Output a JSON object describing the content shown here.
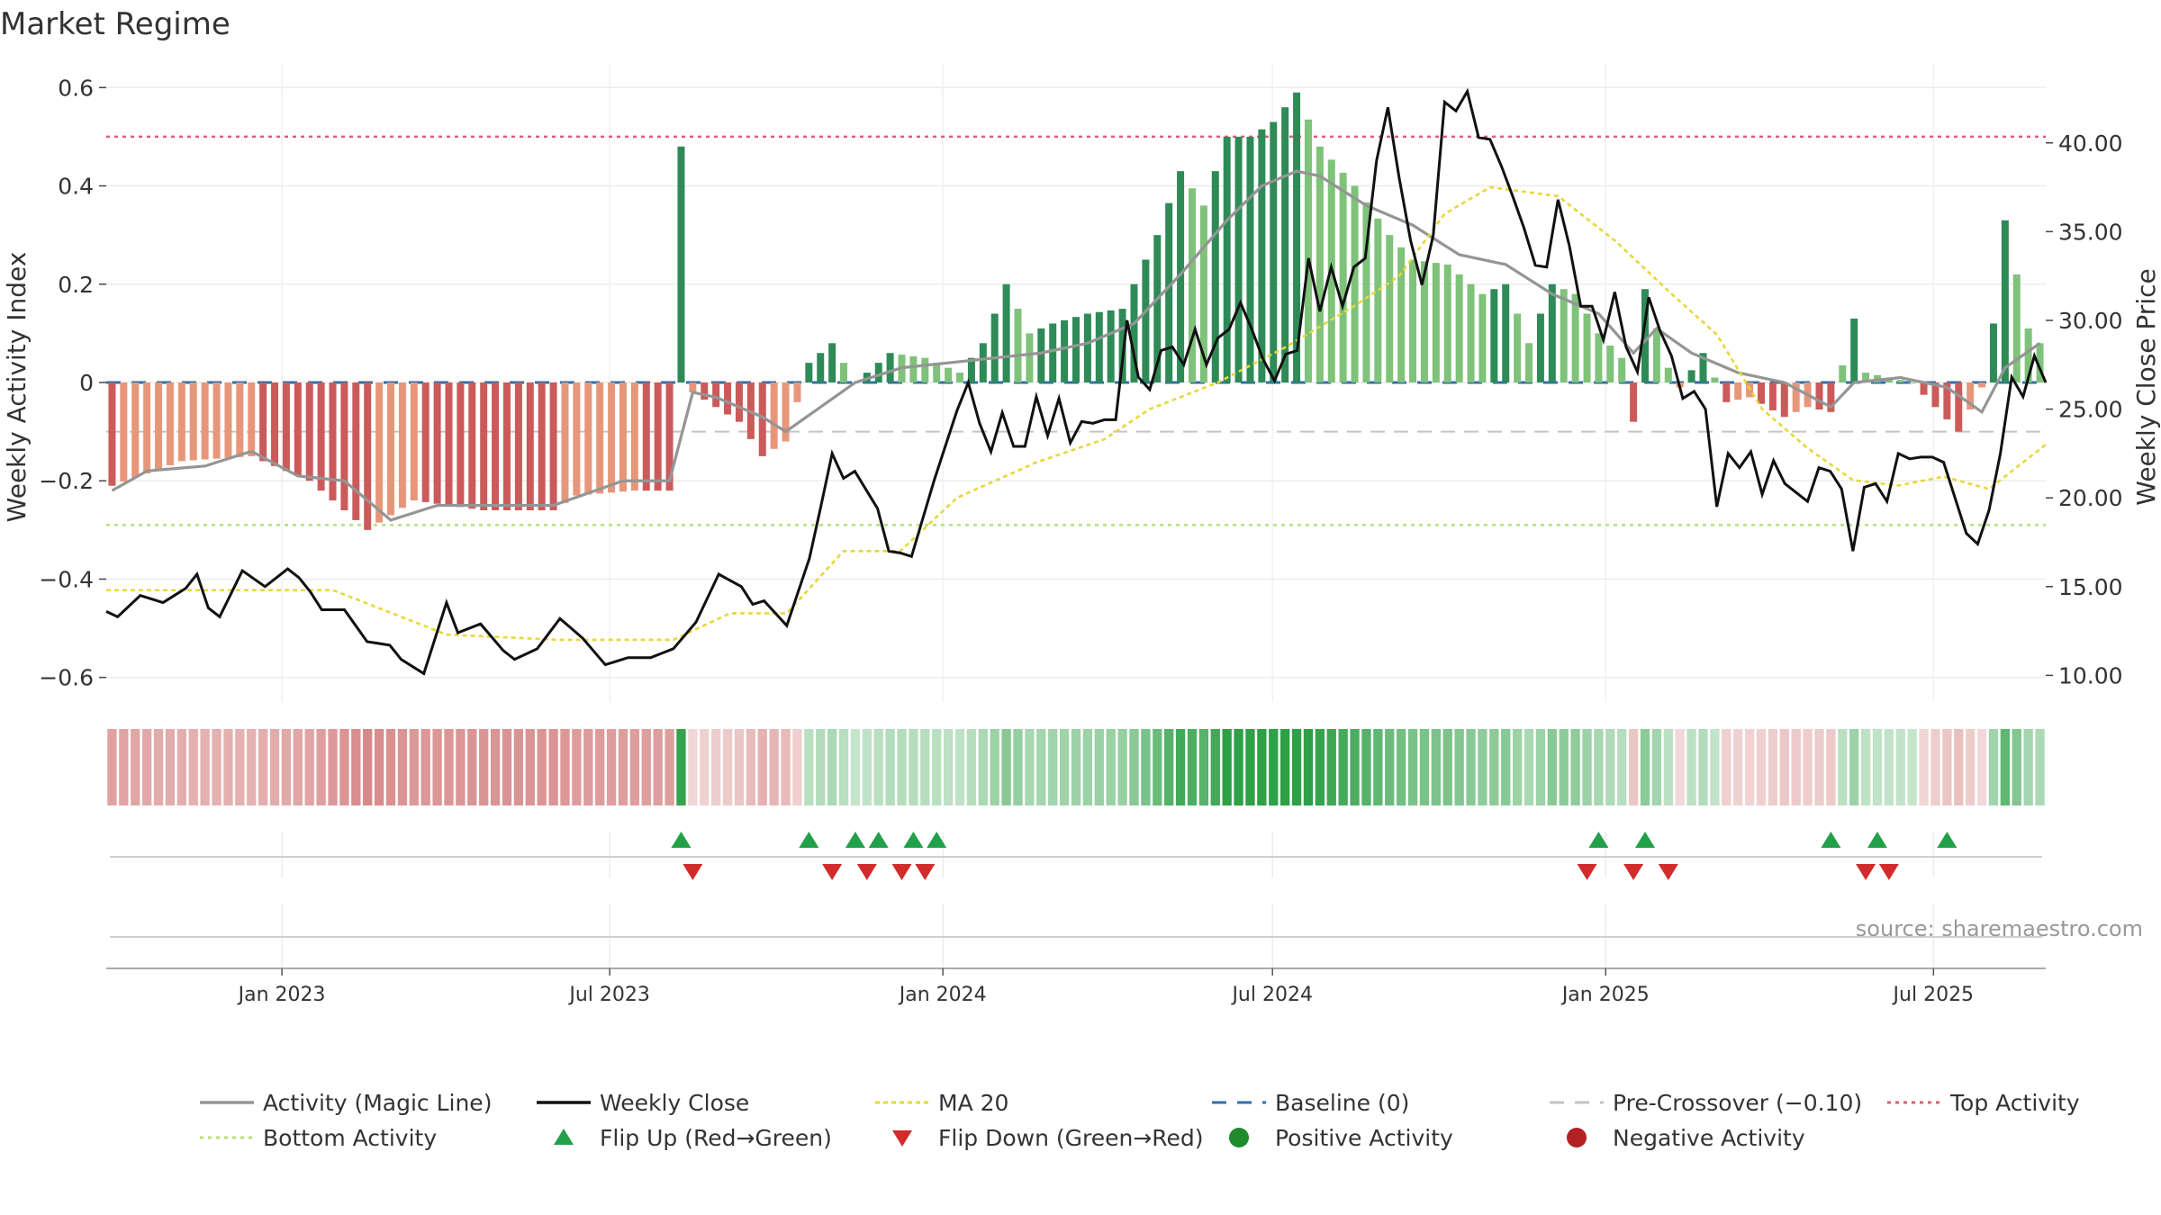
{
  "chart_data": {
    "type": "bar",
    "title": "Market Regime",
    "ylabel_left": "Weekly Activity Index",
    "ylabel_right": "Weekly Close Price",
    "source": "source: sharemaestro.com",
    "left_ylim": [
      -0.65,
      0.65
    ],
    "right_ylim": [
      8.5,
      44.5
    ],
    "left_ticks": [
      "0.6",
      "0.4",
      "0.2",
      "0",
      "−0.2",
      "−0.4",
      "−0.6"
    ],
    "left_tick_values": [
      0.6,
      0.4,
      0.2,
      0,
      -0.2,
      -0.4,
      -0.6
    ],
    "right_ticks": [
      "40.00",
      "35.00",
      "30.00",
      "25.00",
      "20.00",
      "15.00",
      "10.00"
    ],
    "right_tick_values": [
      40,
      35,
      30,
      25,
      20,
      15,
      10
    ],
    "x_start": "2022-09-26",
    "x_end": "2025-09-01",
    "x_ticks": [
      {
        "label": "Jan 2023",
        "date": "2023-01-01"
      },
      {
        "label": "Jul 2023",
        "date": "2023-07-01"
      },
      {
        "label": "Jan 2024",
        "date": "2024-01-01"
      },
      {
        "label": "Jul 2024",
        "date": "2024-07-01"
      },
      {
        "label": "Jan 2025",
        "date": "2025-01-01"
      },
      {
        "label": "Jul 2025",
        "date": "2025-07-01"
      }
    ],
    "reference_lines": {
      "baseline": 0,
      "pre_crossover": -0.1,
      "top_activity": 0.5,
      "bottom_activity": -0.29
    },
    "legend": [
      {
        "label": "Activity (Magic Line)",
        "key": "magic"
      },
      {
        "label": "Weekly Close",
        "key": "close"
      },
      {
        "label": "MA 20",
        "key": "ma"
      },
      {
        "label": "Baseline (0)",
        "key": "baseline"
      },
      {
        "label": "Pre-Crossover (−0.10)",
        "key": "pre"
      },
      {
        "label": "Top Activity",
        "key": "top"
      },
      {
        "label": "Bottom Activity",
        "key": "bottom"
      },
      {
        "label": "Flip Up (Red→Green)",
        "key": "flipup"
      },
      {
        "label": "Flip Down (Green→Red)",
        "key": "flipdown"
      },
      {
        "label": "Positive Activity",
        "key": "pos"
      },
      {
        "label": "Negative Activity",
        "key": "neg"
      }
    ],
    "activity_anchors": [
      [
        0,
        -0.21
      ],
      [
        6,
        -0.16
      ],
      [
        12,
        -0.15
      ],
      [
        17,
        -0.2
      ],
      [
        22,
        -0.3
      ],
      [
        26,
        -0.24
      ],
      [
        32,
        -0.26
      ],
      [
        38,
        -0.26
      ],
      [
        40,
        -0.23
      ],
      [
        45,
        -0.22
      ],
      [
        48,
        -0.22
      ],
      [
        49,
        0.48
      ],
      [
        50,
        -0.02
      ],
      [
        54,
        -0.08
      ],
      [
        56,
        -0.15
      ],
      [
        58,
        -0.12
      ],
      [
        60,
        0.04
      ],
      [
        62,
        0.08
      ],
      [
        64,
        0.0
      ],
      [
        67,
        0.06
      ],
      [
        70,
        0.05
      ],
      [
        73,
        0.02
      ],
      [
        75,
        0.08
      ],
      [
        77,
        0.2
      ],
      [
        79,
        0.1
      ],
      [
        81,
        0.12
      ],
      [
        84,
        0.14
      ],
      [
        87,
        0.15
      ],
      [
        90,
        0.3
      ],
      [
        92,
        0.43
      ],
      [
        94,
        0.36
      ],
      [
        96,
        0.5
      ],
      [
        98,
        0.5
      ],
      [
        100,
        0.53
      ],
      [
        102,
        0.59
      ],
      [
        104,
        0.48
      ],
      [
        107,
        0.4
      ],
      [
        110,
        0.3
      ],
      [
        112,
        0.25
      ],
      [
        115,
        0.24
      ],
      [
        118,
        0.18
      ],
      [
        120,
        0.2
      ],
      [
        122,
        0.08
      ],
      [
        124,
        0.2
      ],
      [
        126,
        0.18
      ],
      [
        128,
        0.1
      ],
      [
        130,
        0.05
      ],
      [
        131,
        -0.08
      ],
      [
        132,
        0.19
      ],
      [
        134,
        0.03
      ],
      [
        135,
        -0.01
      ],
      [
        137,
        0.06
      ],
      [
        139,
        -0.04
      ],
      [
        141,
        -0.03
      ],
      [
        144,
        -0.07
      ],
      [
        146,
        -0.05
      ],
      [
        148,
        -0.06
      ],
      [
        150,
        0.13
      ],
      [
        151,
        0.02
      ],
      [
        153,
        0.01
      ],
      [
        155,
        0.0
      ],
      [
        157,
        -0.05
      ],
      [
        159,
        -0.1
      ],
      [
        161,
        -0.01
      ],
      [
        162,
        0.12
      ],
      [
        163,
        0.33
      ],
      [
        165,
        0.11
      ],
      [
        166,
        0.08
      ]
    ],
    "magic_anchors": [
      [
        0,
        -0.22
      ],
      [
        3,
        -0.18
      ],
      [
        8,
        -0.17
      ],
      [
        12,
        -0.14
      ],
      [
        16,
        -0.19
      ],
      [
        20,
        -0.2
      ],
      [
        24,
        -0.28
      ],
      [
        28,
        -0.25
      ],
      [
        32,
        -0.25
      ],
      [
        38,
        -0.25
      ],
      [
        44,
        -0.2
      ],
      [
        48,
        -0.2
      ],
      [
        50,
        -0.02
      ],
      [
        52,
        -0.03
      ],
      [
        56,
        -0.07
      ],
      [
        58,
        -0.1
      ],
      [
        61,
        -0.05
      ],
      [
        64,
        0.0
      ],
      [
        68,
        0.03
      ],
      [
        72,
        0.04
      ],
      [
        76,
        0.05
      ],
      [
        80,
        0.06
      ],
      [
        84,
        0.08
      ],
      [
        88,
        0.12
      ],
      [
        92,
        0.22
      ],
      [
        96,
        0.33
      ],
      [
        99,
        0.4
      ],
      [
        102,
        0.43
      ],
      [
        104,
        0.42
      ],
      [
        108,
        0.36
      ],
      [
        112,
        0.32
      ],
      [
        116,
        0.26
      ],
      [
        120,
        0.24
      ],
      [
        124,
        0.18
      ],
      [
        128,
        0.14
      ],
      [
        131,
        0.06
      ],
      [
        133,
        0.11
      ],
      [
        136,
        0.06
      ],
      [
        140,
        0.02
      ],
      [
        144,
        0.0
      ],
      [
        148,
        -0.05
      ],
      [
        150,
        0.0
      ],
      [
        154,
        0.01
      ],
      [
        158,
        -0.01
      ],
      [
        161,
        -0.06
      ],
      [
        163,
        0.03
      ],
      [
        166,
        0.08
      ]
    ],
    "close_anchors": [
      [
        0,
        13.6
      ],
      [
        1,
        13.3
      ],
      [
        3,
        14.5
      ],
      [
        5,
        14.1
      ],
      [
        7,
        14.9
      ],
      [
        8,
        15.7
      ],
      [
        9,
        13.8
      ],
      [
        10,
        13.3
      ],
      [
        12,
        15.9
      ],
      [
        14,
        15.0
      ],
      [
        16,
        16.0
      ],
      [
        17,
        15.5
      ],
      [
        18,
        14.7
      ],
      [
        19,
        13.7
      ],
      [
        21,
        13.7
      ],
      [
        23,
        11.9
      ],
      [
        25,
        11.7
      ],
      [
        26,
        10.9
      ],
      [
        28,
        10.1
      ],
      [
        30,
        14.1
      ],
      [
        31,
        12.4
      ],
      [
        33,
        12.9
      ],
      [
        35,
        11.4
      ],
      [
        36,
        10.9
      ],
      [
        38,
        11.5
      ],
      [
        40,
        13.2
      ],
      [
        42,
        12.1
      ],
      [
        44,
        10.6
      ],
      [
        46,
        11.0
      ],
      [
        48,
        11.0
      ],
      [
        50,
        11.5
      ],
      [
        52,
        13.0
      ],
      [
        54,
        15.7
      ],
      [
        56,
        15.0
      ],
      [
        57,
        14.0
      ],
      [
        58,
        14.2
      ],
      [
        60,
        12.8
      ],
      [
        62,
        16.6
      ],
      [
        63,
        19.5
      ],
      [
        64,
        22.5
      ],
      [
        65,
        21.1
      ],
      [
        66,
        21.5
      ],
      [
        68,
        19.4
      ],
      [
        69,
        17.0
      ],
      [
        70,
        16.9
      ],
      [
        71,
        16.7
      ],
      [
        73,
        21.0
      ],
      [
        75,
        24.9
      ],
      [
        76,
        26.5
      ],
      [
        77,
        24.2
      ],
      [
        78,
        22.6
      ],
      [
        79,
        24.8
      ],
      [
        80,
        22.9
      ],
      [
        81,
        22.9
      ],
      [
        82,
        25.7
      ],
      [
        83,
        23.5
      ],
      [
        84,
        25.6
      ],
      [
        85,
        23.1
      ],
      [
        86,
        24.3
      ],
      [
        87,
        24.2
      ],
      [
        88,
        24.4
      ],
      [
        89,
        24.4
      ],
      [
        90,
        30.0
      ],
      [
        91,
        26.8
      ],
      [
        92,
        26.1
      ],
      [
        93,
        28.3
      ],
      [
        94,
        28.5
      ],
      [
        95,
        27.5
      ],
      [
        96,
        29.5
      ],
      [
        97,
        27.5
      ],
      [
        98,
        29.0
      ],
      [
        99,
        29.5
      ],
      [
        100,
        31.0
      ],
      [
        101,
        29.5
      ],
      [
        102,
        27.8
      ],
      [
        103,
        26.6
      ],
      [
        104,
        28.1
      ],
      [
        105,
        28.3
      ],
      [
        106,
        33.5
      ],
      [
        107,
        30.5
      ],
      [
        108,
        33.0
      ],
      [
        109,
        30.8
      ],
      [
        110,
        33.0
      ],
      [
        111,
        33.5
      ],
      [
        112,
        39.0
      ],
      [
        113,
        42.0
      ],
      [
        114,
        38.0
      ],
      [
        115,
        34.5
      ],
      [
        116,
        32.0
      ],
      [
        117,
        34.8
      ],
      [
        118,
        42.3
      ],
      [
        119,
        41.8
      ],
      [
        120,
        42.9
      ],
      [
        121,
        40.3
      ],
      [
        122,
        40.2
      ],
      [
        123,
        38.7
      ],
      [
        124,
        37.0
      ],
      [
        125,
        35.2
      ],
      [
        126,
        33.1
      ],
      [
        127,
        33.0
      ],
      [
        128,
        36.8
      ],
      [
        129,
        34.2
      ],
      [
        130,
        30.8
      ],
      [
        131,
        30.8
      ],
      [
        132,
        28.9
      ],
      [
        133,
        31.6
      ],
      [
        134,
        28.5
      ],
      [
        135,
        27.1
      ],
      [
        136,
        31.3
      ],
      [
        137,
        29.4
      ],
      [
        138,
        28.0
      ],
      [
        139,
        25.6
      ],
      [
        140,
        26.0
      ],
      [
        141,
        25.0
      ],
      [
        142,
        19.5
      ],
      [
        143,
        22.5
      ],
      [
        144,
        21.7
      ],
      [
        145,
        22.6
      ],
      [
        146,
        20.2
      ],
      [
        147,
        22.1
      ],
      [
        148,
        20.8
      ],
      [
        149,
        20.3
      ],
      [
        150,
        19.8
      ],
      [
        151,
        21.7
      ],
      [
        152,
        21.5
      ],
      [
        153,
        20.5
      ],
      [
        154,
        17.0
      ],
      [
        155,
        20.6
      ],
      [
        156,
        20.8
      ],
      [
        157,
        19.8
      ],
      [
        158,
        22.5
      ],
      [
        159,
        22.2
      ],
      [
        160,
        22.3
      ],
      [
        161,
        22.3
      ],
      [
        162,
        22.0
      ],
      [
        163,
        20.0
      ],
      [
        164,
        18.0
      ],
      [
        165,
        17.4
      ],
      [
        166,
        19.3
      ],
      [
        167,
        22.5
      ],
      [
        168,
        26.8
      ],
      [
        169,
        25.7
      ],
      [
        170,
        28.0
      ],
      [
        171,
        26.5
      ]
    ],
    "ma_anchors": [
      [
        0,
        14.8
      ],
      [
        20,
        14.8
      ],
      [
        30,
        12.3
      ],
      [
        40,
        12.0
      ],
      [
        50,
        12.0
      ],
      [
        55,
        13.5
      ],
      [
        60,
        13.5
      ],
      [
        65,
        17.0
      ],
      [
        70,
        17.0
      ],
      [
        75,
        20.0
      ],
      [
        82,
        22.0
      ],
      [
        88,
        23.3
      ],
      [
        92,
        25.0
      ],
      [
        98,
        26.5
      ],
      [
        104,
        28.5
      ],
      [
        110,
        30.8
      ],
      [
        114,
        32.5
      ],
      [
        118,
        36.0
      ],
      [
        122,
        37.5
      ],
      [
        128,
        37.0
      ],
      [
        133,
        34.5
      ],
      [
        138,
        31.5
      ],
      [
        142,
        29.2
      ],
      [
        146,
        25.0
      ],
      [
        150,
        22.8
      ],
      [
        154,
        21.0
      ],
      [
        158,
        20.7
      ],
      [
        162,
        21.2
      ],
      [
        166,
        20.5
      ],
      [
        168,
        21.5
      ],
      [
        171,
        23.0
      ]
    ],
    "flip_up_indices": [
      49,
      60,
      64,
      66,
      69,
      71,
      128,
      132,
      148,
      152,
      158
    ],
    "flip_down_indices": [
      50,
      62,
      65,
      68,
      70,
      127,
      131,
      134,
      151,
      153
    ]
  }
}
